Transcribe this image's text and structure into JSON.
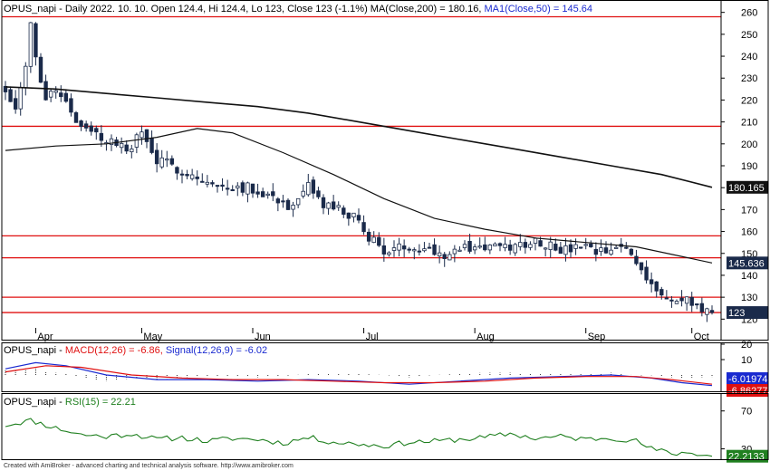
{
  "header": {
    "price_title": "OPUS_napi - Daily 2022. 10. 10. Open 124.4, Hi 124.4, Lo 123, Close 123 (-1.1%) MA(Close,200) = 180.16, ",
    "ma50_title": "MA1(Close,50) = 145.64",
    "macd_prefix": "OPUS_napi - ",
    "macd_title": "MACD(12,26) = -6.86, ",
    "signal_title": "Signal(12,26,9) = -6.02",
    "rsi_prefix": "OPUS_napi - ",
    "rsi_title": "RSI(15) = 22.21",
    "footer": "Created with AmiBroker - advanced charting and technical analysis software. http://www.amibroker.com"
  },
  "colors": {
    "hline": "#e01010",
    "ma200": "#111111",
    "ma50": "#111111",
    "candle": "#1a2a4a",
    "macd": "#1a2ad0",
    "signal": "#e01010",
    "rsi": "#208020",
    "ma200_badge": "#111111",
    "ma50_badge": "#1a2a4a",
    "price_badge": "#1a2a4a",
    "macd_badge": "#1a2ad0",
    "signal_badge": "#e01010",
    "rsi_badge": "#208020"
  },
  "chart_data": [
    {
      "type": "candlestick",
      "title": "OPUS_napi - Daily",
      "x_labels": [
        "Apr",
        "May",
        "Jun",
        "Jul",
        "Aug",
        "Sep",
        "Oct"
      ],
      "x_label_bars": [
        6,
        27,
        49,
        71,
        93,
        115,
        136
      ],
      "bar_count": 141,
      "ylim": [
        116,
        264
      ],
      "y_ticks": [
        120,
        130,
        140,
        150,
        160,
        170,
        180,
        190,
        200,
        210,
        220,
        230,
        240,
        250,
        260
      ],
      "horizontal_lines": [
        258,
        208,
        158,
        148,
        130,
        123
      ],
      "ma200": [
        {
          "bar": 0,
          "value": 226
        },
        {
          "bar": 10,
          "value": 225
        },
        {
          "bar": 20,
          "value": 223
        },
        {
          "bar": 30,
          "value": 221
        },
        {
          "bar": 40,
          "value": 219
        },
        {
          "bar": 50,
          "value": 217
        },
        {
          "bar": 60,
          "value": 214
        },
        {
          "bar": 70,
          "value": 210
        },
        {
          "bar": 80,
          "value": 206
        },
        {
          "bar": 90,
          "value": 202
        },
        {
          "bar": 100,
          "value": 198
        },
        {
          "bar": 110,
          "value": 194
        },
        {
          "bar": 120,
          "value": 190
        },
        {
          "bar": 130,
          "value": 186
        },
        {
          "bar": 140,
          "value": 180.165
        }
      ],
      "ma50": [
        {
          "bar": 0,
          "value": 197
        },
        {
          "bar": 10,
          "value": 199
        },
        {
          "bar": 20,
          "value": 200
        },
        {
          "bar": 30,
          "value": 203
        },
        {
          "bar": 38,
          "value": 207
        },
        {
          "bar": 45,
          "value": 205
        },
        {
          "bar": 55,
          "value": 196
        },
        {
          "bar": 65,
          "value": 186
        },
        {
          "bar": 75,
          "value": 175
        },
        {
          "bar": 85,
          "value": 166
        },
        {
          "bar": 95,
          "value": 161
        },
        {
          "bar": 105,
          "value": 157
        },
        {
          "bar": 115,
          "value": 155
        },
        {
          "bar": 125,
          "value": 153
        },
        {
          "bar": 140,
          "value": 145.636
        }
      ],
      "close_path": [
        {
          "bar": 0,
          "value": 225
        },
        {
          "bar": 2,
          "value": 218
        },
        {
          "bar": 4,
          "value": 234
        },
        {
          "bar": 5,
          "value": 256
        },
        {
          "bar": 6,
          "value": 238
        },
        {
          "bar": 8,
          "value": 222
        },
        {
          "bar": 10,
          "value": 225
        },
        {
          "bar": 12,
          "value": 220
        },
        {
          "bar": 15,
          "value": 207
        },
        {
          "bar": 18,
          "value": 204
        },
        {
          "bar": 21,
          "value": 201
        },
        {
          "bar": 24,
          "value": 197
        },
        {
          "bar": 27,
          "value": 205
        },
        {
          "bar": 30,
          "value": 192
        },
        {
          "bar": 33,
          "value": 190
        },
        {
          "bar": 36,
          "value": 187
        },
        {
          "bar": 39,
          "value": 183
        },
        {
          "bar": 42,
          "value": 180
        },
        {
          "bar": 45,
          "value": 181
        },
        {
          "bar": 48,
          "value": 180
        },
        {
          "bar": 51,
          "value": 178
        },
        {
          "bar": 54,
          "value": 175
        },
        {
          "bar": 57,
          "value": 170
        },
        {
          "bar": 60,
          "value": 180
        },
        {
          "bar": 63,
          "value": 172
        },
        {
          "bar": 66,
          "value": 170
        },
        {
          "bar": 69,
          "value": 166
        },
        {
          "bar": 72,
          "value": 158
        },
        {
          "bar": 75,
          "value": 151
        },
        {
          "bar": 78,
          "value": 152
        },
        {
          "bar": 81,
          "value": 154
        },
        {
          "bar": 84,
          "value": 152
        },
        {
          "bar": 87,
          "value": 150
        },
        {
          "bar": 90,
          "value": 152
        },
        {
          "bar": 93,
          "value": 153
        },
        {
          "bar": 96,
          "value": 153
        },
        {
          "bar": 99,
          "value": 152
        },
        {
          "bar": 102,
          "value": 154
        },
        {
          "bar": 105,
          "value": 156
        },
        {
          "bar": 108,
          "value": 154
        },
        {
          "bar": 111,
          "value": 151
        },
        {
          "bar": 114,
          "value": 153
        },
        {
          "bar": 117,
          "value": 150
        },
        {
          "bar": 120,
          "value": 151
        },
        {
          "bar": 123,
          "value": 153
        },
        {
          "bar": 126,
          "value": 143
        },
        {
          "bar": 128,
          "value": 137
        },
        {
          "bar": 130,
          "value": 130
        },
        {
          "bar": 132,
          "value": 128
        },
        {
          "bar": 134,
          "value": 128
        },
        {
          "bar": 136,
          "value": 128
        },
        {
          "bar": 138,
          "value": 124
        },
        {
          "bar": 140,
          "value": 123
        }
      ],
      "y_badges": [
        {
          "value": 180.165,
          "label": "180.165"
        },
        {
          "value": 145.636,
          "label": "145.636"
        },
        {
          "value": 123,
          "label": "123"
        }
      ]
    },
    {
      "type": "line",
      "title": "MACD(12,26)",
      "ylim": [
        -10,
        20
      ],
      "y_ticks": [
        10,
        20
      ],
      "series": [
        {
          "name": "MACD(12,26)",
          "points": [
            {
              "bar": 0,
              "value": 4
            },
            {
              "bar": 6,
              "value": 8
            },
            {
              "bar": 12,
              "value": 6
            },
            {
              "bar": 20,
              "value": 0
            },
            {
              "bar": 30,
              "value": -3
            },
            {
              "bar": 40,
              "value": -3
            },
            {
              "bar": 50,
              "value": -4
            },
            {
              "bar": 60,
              "value": -3
            },
            {
              "bar": 70,
              "value": -4
            },
            {
              "bar": 80,
              "value": -6
            },
            {
              "bar": 90,
              "value": -4
            },
            {
              "bar": 100,
              "value": -2
            },
            {
              "bar": 110,
              "value": -1
            },
            {
              "bar": 120,
              "value": 0
            },
            {
              "bar": 128,
              "value": -2
            },
            {
              "bar": 134,
              "value": -5
            },
            {
              "bar": 140,
              "value": -6.86
            }
          ]
        },
        {
          "name": "Signal(12,26,9)",
          "points": [
            {
              "bar": 0,
              "value": 2
            },
            {
              "bar": 8,
              "value": 6
            },
            {
              "bar": 15,
              "value": 5
            },
            {
              "bar": 25,
              "value": 0
            },
            {
              "bar": 35,
              "value": -2
            },
            {
              "bar": 45,
              "value": -3
            },
            {
              "bar": 55,
              "value": -3
            },
            {
              "bar": 65,
              "value": -4
            },
            {
              "bar": 75,
              "value": -5
            },
            {
              "bar": 85,
              "value": -5
            },
            {
              "bar": 95,
              "value": -4
            },
            {
              "bar": 105,
              "value": -2
            },
            {
              "bar": 115,
              "value": -1
            },
            {
              "bar": 125,
              "value": -1
            },
            {
              "bar": 132,
              "value": -3
            },
            {
              "bar": 140,
              "value": -6.02
            }
          ]
        }
      ],
      "y_badges": [
        {
          "value": -6.01974,
          "label": "-6.01974"
        },
        {
          "value": -6.86277,
          "label": "-6.86277"
        }
      ]
    },
    {
      "type": "line",
      "title": "RSI(15)",
      "ylim": [
        20,
        85
      ],
      "y_ticks": [
        30,
        70
      ],
      "series": [
        {
          "name": "RSI(15)",
          "points": [
            {
              "bar": 0,
              "value": 55
            },
            {
              "bar": 5,
              "value": 60
            },
            {
              "bar": 10,
              "value": 52
            },
            {
              "bar": 15,
              "value": 45
            },
            {
              "bar": 20,
              "value": 43
            },
            {
              "bar": 25,
              "value": 46
            },
            {
              "bar": 30,
              "value": 40
            },
            {
              "bar": 35,
              "value": 42
            },
            {
              "bar": 40,
              "value": 38
            },
            {
              "bar": 45,
              "value": 41
            },
            {
              "bar": 50,
              "value": 40
            },
            {
              "bar": 55,
              "value": 36
            },
            {
              "bar": 60,
              "value": 42
            },
            {
              "bar": 65,
              "value": 37
            },
            {
              "bar": 70,
              "value": 35
            },
            {
              "bar": 75,
              "value": 33
            },
            {
              "bar": 80,
              "value": 37
            },
            {
              "bar": 85,
              "value": 38
            },
            {
              "bar": 90,
              "value": 40
            },
            {
              "bar": 95,
              "value": 42
            },
            {
              "bar": 100,
              "value": 46
            },
            {
              "bar": 105,
              "value": 41
            },
            {
              "bar": 110,
              "value": 43
            },
            {
              "bar": 115,
              "value": 40
            },
            {
              "bar": 120,
              "value": 42
            },
            {
              "bar": 125,
              "value": 38
            },
            {
              "bar": 128,
              "value": 30
            },
            {
              "bar": 132,
              "value": 25
            },
            {
              "bar": 136,
              "value": 26
            },
            {
              "bar": 140,
              "value": 22.21
            }
          ]
        }
      ],
      "y_badges": [
        {
          "value": 22.2133,
          "label": "22.2133"
        }
      ]
    }
  ]
}
